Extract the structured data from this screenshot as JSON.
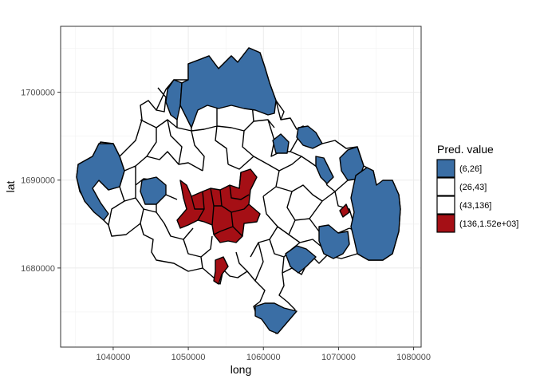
{
  "chart_data": {
    "type": "choropleth-map",
    "xlabel": "long",
    "ylabel": "lat",
    "xlim": [
      1033000,
      1081000
    ],
    "ylim": [
      1671000,
      1707500
    ],
    "x_ticks": [
      1040000,
      1050000,
      1060000,
      1070000,
      1080000
    ],
    "x_tick_labels": [
      "1040000",
      "1050000",
      "1060000",
      "1070000",
      "1080000"
    ],
    "y_ticks": [
      1680000,
      1690000,
      1700000
    ],
    "y_tick_labels": [
      "1680000",
      "1690000",
      "1700000"
    ],
    "grid": true,
    "theme": "bw",
    "legend": {
      "title": "Pred. value",
      "placement": "right",
      "entries": [
        {
          "label": "(6,26]",
          "color": "#3A6EA5"
        },
        {
          "label": "(26,43]",
          "color": "#FFFFFF"
        },
        {
          "label": "(43,136]",
          "color": "#FFFFFF"
        },
        {
          "label": "(136,1.52e+03]",
          "color": "#A50F15"
        }
      ]
    },
    "outline_color": "#000000",
    "regions_approx": [
      {
        "class": "(6,26]",
        "area": "north"
      },
      {
        "class": "(6,26]",
        "area": "north-west"
      },
      {
        "class": "(6,26]",
        "area": "west"
      },
      {
        "class": "(6,26]",
        "area": "east"
      },
      {
        "class": "(6,26]",
        "area": "south"
      },
      {
        "class": "(136,1.52e+03]",
        "area": "center"
      },
      {
        "class": "(136,1.52e+03]",
        "area": "south-center"
      },
      {
        "class": "(136,1.52e+03]",
        "area": "east-small"
      }
    ]
  }
}
